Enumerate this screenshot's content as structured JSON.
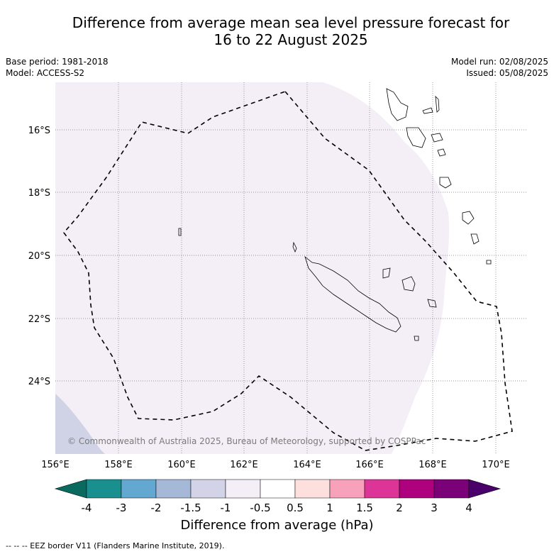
{
  "title_line1": "Difference from average mean sea level pressure forecast for",
  "title_line2": "16 to 22 August 2025",
  "base_period": "Base period: 1981-2018",
  "model": "Model: ACCESS-S2",
  "model_run": "Model run: 02/08/2025",
  "issued": "Issued: 05/08/2025",
  "copyright": "© Commonwealth of Australia 2025, Bureau of Meteorology, supported by COSPPac",
  "lon_labels": [
    "156°E",
    "158°E",
    "160°E",
    "162°E",
    "164°E",
    "166°E",
    "168°E",
    "170°E"
  ],
  "lat_labels": [
    "16°S",
    "18°S",
    "20°S",
    "22°S",
    "24°S"
  ],
  "colorbar": {
    "title": "Difference from average (hPa)",
    "tick_labels": [
      "-4",
      "-3",
      "-2",
      "-1.5",
      "-1",
      "-0.5",
      "0.5",
      "1",
      "1.5",
      "2",
      "3",
      "4"
    ],
    "colors": [
      "#1a8f8f",
      "#63a8d0",
      "#a5b8d8",
      "#d3d3e8",
      "#f4eef6",
      "#ffffff",
      "#fde0de",
      "#f8a1bb",
      "#dd3497",
      "#ae017e",
      "#7a0177"
    ],
    "under_color": "#0b6a60",
    "over_color": "#49006a"
  },
  "footer": "-- -- -- EEZ border V11 (Flanders Marine Institute, 2019)."
}
